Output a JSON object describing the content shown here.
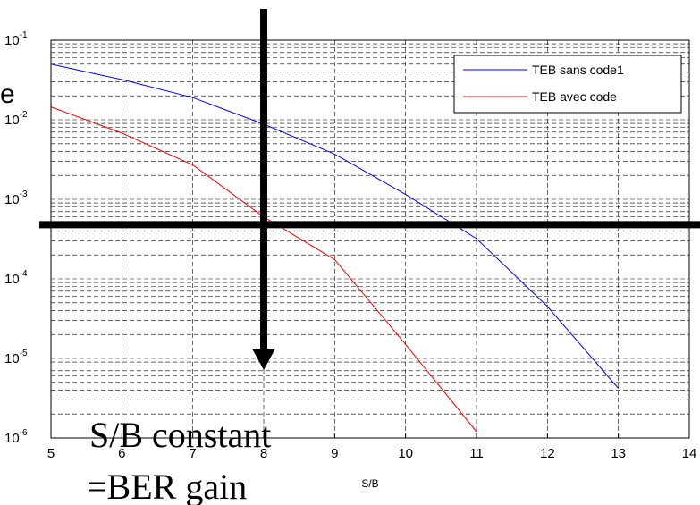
{
  "chart_data": {
    "type": "line",
    "xlabel": "S/B",
    "ylabel": "e",
    "xlim": [
      5,
      14
    ],
    "ylim": [
      1e-06,
      0.1
    ],
    "yscale": "log",
    "grid": true,
    "legend_position": "top-right",
    "x_ticks": [
      "5",
      "6",
      "7",
      "8",
      "9",
      "10",
      "11",
      "12",
      "13",
      "14"
    ],
    "y_ticks": [
      {
        "base": "10",
        "exp": "-6"
      },
      {
        "base": "10",
        "exp": "-5"
      },
      {
        "base": "10",
        "exp": "-4"
      },
      {
        "base": "10",
        "exp": "-3"
      },
      {
        "base": "10",
        "exp": "-2"
      },
      {
        "base": "10",
        "exp": "-1"
      }
    ],
    "series": [
      {
        "name": "TEB sans code1",
        "color": "#0000ff",
        "x": [
          5,
          6,
          7,
          8,
          9,
          10,
          11,
          12,
          13
        ],
        "y": [
          0.05,
          0.032,
          0.019,
          0.0088,
          0.0037,
          0.00115,
          0.00032,
          4.5e-05,
          4.2e-06
        ]
      },
      {
        "name": "TEB avec code",
        "color": "#ff0000",
        "x": [
          5,
          6,
          7,
          8,
          9,
          10,
          11
        ],
        "y": [
          0.0145,
          0.0068,
          0.0027,
          0.0006,
          0.000175,
          1.5e-05,
          1.2e-06
        ]
      }
    ],
    "annotations": {
      "line1": "S/B constant",
      "line2": "=BER gain",
      "vertical_arrow_x": 8,
      "horizontal_line_y": 0.00048
    }
  }
}
